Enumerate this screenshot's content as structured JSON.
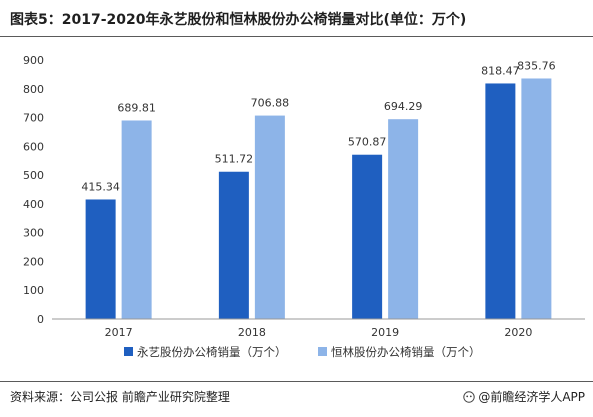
{
  "title": "图表5：2017-2020年永艺股份和恒林股份办公椅销量对比(单位：万个)",
  "source": "资料来源：公司公报 前瞻产业研究院整理",
  "credit": "@前瞻经济学人APP",
  "colors": {
    "series1": "#1f5fc0",
    "series2": "#8db4e8",
    "axis": "#999999",
    "grid": "#d9d9d9"
  },
  "chart_data": {
    "type": "bar",
    "categories": [
      "2017",
      "2018",
      "2019",
      "2020"
    ],
    "series": [
      {
        "name": "永艺股份办公椅销量（万个）",
        "values": [
          415.34,
          511.72,
          570.87,
          818.47
        ]
      },
      {
        "name": "恒林股份办公椅销量（万个）",
        "values": [
          689.81,
          706.88,
          694.29,
          835.76
        ]
      }
    ],
    "yticks": [
      0,
      100,
      200,
      300,
      400,
      500,
      600,
      700,
      800,
      900
    ],
    "ylim": [
      0,
      900
    ],
    "grid": false,
    "legend_position": "bottom"
  }
}
